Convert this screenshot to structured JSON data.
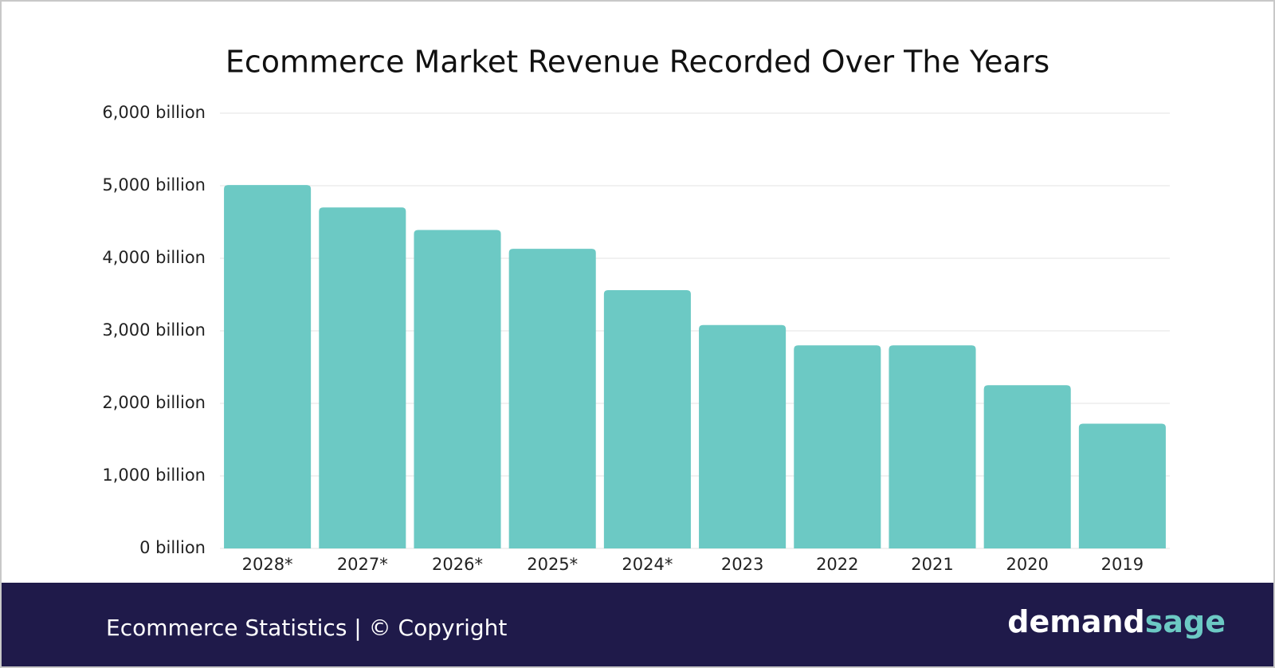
{
  "chart_data": {
    "type": "bar",
    "title": "Ecommerce Market Revenue Recorded Over The Years",
    "categories": [
      "2028*",
      "2027*",
      "2026*",
      "2025*",
      "2024*",
      "2023",
      "2022",
      "2021",
      "2020",
      "2019"
    ],
    "values": [
      5010,
      4700,
      4390,
      4130,
      3560,
      3080,
      2800,
      2800,
      2250,
      1720
    ],
    "color": "#6cc9c4",
    "ylim": [
      0,
      6000
    ],
    "yticks": [
      {
        "value": 0,
        "label": "0 billion"
      },
      {
        "value": 1000,
        "label": "1,000 billion"
      },
      {
        "value": 2000,
        "label": "2,000 billion"
      },
      {
        "value": 3000,
        "label": "3,000 billion"
      },
      {
        "value": 4000,
        "label": "4,000 billion"
      },
      {
        "value": 5000,
        "label": "5,000 billion"
      },
      {
        "value": 6000,
        "label": "6,000 billion"
      }
    ],
    "grid": true
  },
  "footer": {
    "caption": "Ecommerce Statistics | © Copyright",
    "logo_part1": "demand",
    "logo_part2": "sage"
  }
}
